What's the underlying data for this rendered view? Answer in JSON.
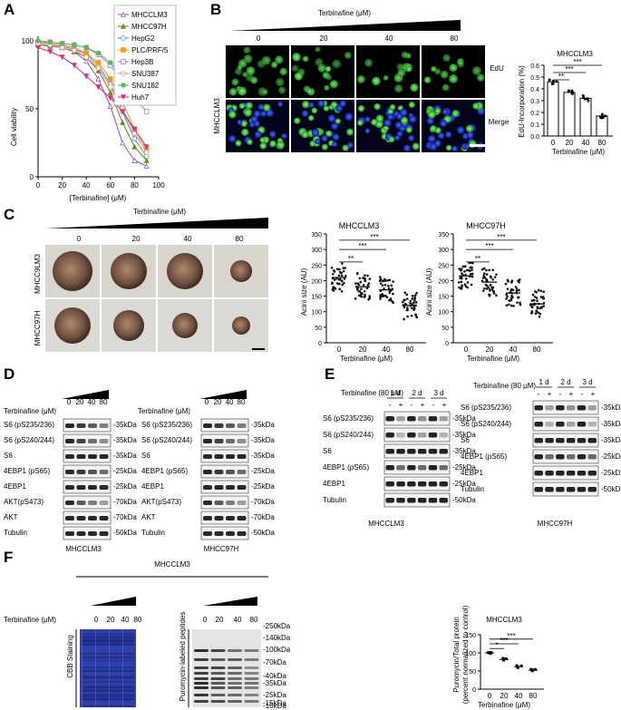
{
  "panels": {
    "A": "A",
    "B": "B",
    "C": "C",
    "D": "D",
    "E": "E",
    "F": "F"
  },
  "panel_a": {
    "ylabel": "Cell viability",
    "xlabel": "[Terbinafine] (μM)",
    "legend": [
      {
        "name": "MHCCLM3",
        "color": "#9b59b6",
        "marker": "triangle-open"
      },
      {
        "name": "MHCC97H",
        "color": "#6b8e23",
        "marker": "triangle"
      },
      {
        "name": "HepG2",
        "color": "#4a90d9",
        "marker": "circle-open"
      },
      {
        "name": "PLC/PRF/5",
        "color": "#f39c12",
        "marker": "square"
      },
      {
        "name": "Hep3B",
        "color": "#c774c7",
        "marker": "square-open"
      },
      {
        "name": "SNU387",
        "color": "#e88a8a",
        "marker": "circle-open"
      },
      {
        "name": "SNU182",
        "color": "#5cb85c",
        "marker": "circle"
      },
      {
        "name": "Huh7",
        "color": "#d63384",
        "marker": "triangle-down"
      }
    ]
  },
  "panel_b": {
    "treatment_label": "Terbinafine (μM)",
    "doses": [
      "0",
      "20",
      "40",
      "80"
    ],
    "row_group_label": "MHCCLM3",
    "rows": [
      "EdU",
      "Merge"
    ],
    "chart_title": "MHCCLM3",
    "ylabel": "EdU-Incorporation (%)",
    "xlabel": "Terbinafine (μM)",
    "sig": [
      "**",
      "***",
      "***"
    ]
  },
  "panel_c": {
    "treatment_label": "Terbinafine (μM)",
    "doses": [
      "0",
      "20",
      "40",
      "80"
    ],
    "rows": [
      "MHCC9LM3",
      "MHCC97H"
    ],
    "charts": [
      {
        "title": "MHCCLM3",
        "ylabel": "Acini size (AU)",
        "xlabel": "Terbinafine (μM)",
        "sig": [
          "**",
          "***",
          "***"
        ]
      },
      {
        "title": "MHCC97H",
        "ylabel": "Acini size (AU)",
        "xlabel": "Terbinafine (μM)",
        "sig": [
          "**",
          "***",
          "***"
        ]
      }
    ]
  },
  "panel_d": {
    "treatment_label": "Terbinafine (μM)",
    "doses": [
      "0",
      "20",
      "40",
      "80"
    ],
    "blot_labels": [
      "S6 (pS235/236)",
      "S6 (pS240/244)",
      "S6",
      "4EBP1 (pS65)",
      "4EBP1",
      "AKT(pS473)",
      "AKT",
      "Tubulin"
    ],
    "markers_left": [
      "35kDa",
      "35kDa",
      "35kDa",
      "25kDa",
      "25kDa",
      "70kDa",
      "70kDa",
      "50kDa"
    ],
    "markers_right": [
      "35kDa",
      "35kDa",
      "35kDa",
      "25kDa",
      "25kDa",
      "70kDa",
      "70kDa",
      "50kDa"
    ],
    "cell_lines": [
      "MHCCLM3",
      "MHCC97H"
    ]
  },
  "panel_e": {
    "treatment_label": "Terbinafine (80 μM)",
    "times": [
      "1 d",
      "2 d",
      "3 d"
    ],
    "signs": [
      "-",
      "+",
      "-",
      "+",
      "-",
      "+"
    ],
    "blot_labels": [
      "S6 (pS235/236)",
      "S6 (pS240/244)",
      "S6",
      "4EBP1 (pS65)",
      "4EBP1",
      "Tubulin"
    ],
    "markers": [
      "35kDa",
      "35kDa",
      "35kDa",
      "25kDa",
      "25kDa",
      "50kDa"
    ],
    "cell_lines": [
      "MHCCLM3",
      "MHCC97H"
    ]
  },
  "panel_f": {
    "cell_line": "MHCCLM3",
    "treatment_label": "Terbinafine (μM)",
    "doses": [
      "0",
      "20",
      "40",
      "80"
    ],
    "cbb_label": "CBB Staining",
    "puro_label": "Puromycin-labeled peptides",
    "ladder": [
      "250kDa",
      "140kDa",
      "100kDa",
      "70kDa",
      "40kDa",
      "35kDa",
      "25kDa",
      "15kDa",
      "10kDa"
    ],
    "chart_title": "MHCCLM3",
    "ylabel_1": "Puromycin/Total protein",
    "ylabel_2": "(percent normalized to control)",
    "xlabel": "Terbinafine (μM)",
    "sig": [
      "*",
      "***",
      "***"
    ]
  },
  "chart_data": [
    {
      "type": "line",
      "panel": "A",
      "xlabel": "[Terbinafine] (μM)",
      "ylabel": "Cell viability",
      "xlim": [
        0,
        100
      ],
      "ylim": [
        0,
        100
      ],
      "xticks": [
        0,
        20,
        40,
        60,
        80,
        100
      ],
      "yticks": [
        0,
        50,
        100
      ],
      "x": [
        0,
        10,
        20,
        30,
        40,
        50,
        60,
        70,
        80,
        90
      ],
      "series": [
        {
          "name": "MHCCLM3",
          "values": [
            98,
            97,
            95,
            92,
            85,
            72,
            52,
            25,
            12,
            8
          ]
        },
        {
          "name": "MHCC97H",
          "values": [
            97,
            96,
            95,
            92,
            88,
            78,
            62,
            40,
            22,
            12
          ]
        },
        {
          "name": "HepG2",
          "values": [
            98,
            97,
            96,
            94,
            90,
            82,
            68,
            48,
            28,
            15
          ]
        },
        {
          "name": "PLC/PRF/5",
          "values": [
            99,
            98,
            97,
            95,
            91,
            84,
            72,
            55,
            35,
            20
          ]
        },
        {
          "name": "Hep3B",
          "values": [
            99,
            99,
            98,
            97,
            95,
            90,
            82,
            70,
            58,
            48
          ]
        },
        {
          "name": "SNU387",
          "values": [
            98,
            97,
            95,
            93,
            88,
            80,
            66,
            50,
            32,
            18
          ]
        },
        {
          "name": "SNU182",
          "values": [
            100,
            99,
            98,
            97,
            95,
            91,
            84,
            74,
            65,
            57
          ]
        },
        {
          "name": "Huh7",
          "values": [
            95,
            92,
            88,
            82,
            74,
            66,
            58,
            48,
            35,
            22
          ]
        }
      ]
    },
    {
      "type": "bar",
      "panel": "B",
      "title": "MHCCLM3",
      "ylabel": "EdU-Incorporation (%)",
      "xlabel": "Terbinafine (μM)",
      "categories": [
        "0",
        "20",
        "40",
        "80"
      ],
      "values": [
        0.46,
        0.37,
        0.32,
        0.17
      ],
      "ylim": [
        0,
        0.6
      ],
      "yticks": [
        0,
        0.1,
        0.2,
        0.3,
        0.4,
        0.5,
        0.6
      ]
    },
    {
      "type": "scatter",
      "panel": "C",
      "title": "MHCCLM3",
      "ylabel": "Acini size (AU)",
      "xlabel": "Terbinafine (μM)",
      "categories": [
        "0",
        "20",
        "40",
        "80"
      ],
      "means": [
        210,
        180,
        170,
        120
      ],
      "ylim": [
        0,
        350
      ],
      "yticks": [
        0,
        50,
        100,
        150,
        200,
        250,
        300,
        350
      ]
    },
    {
      "type": "scatter",
      "panel": "C",
      "title": "MHCC97H",
      "ylabel": "Acini size (AU)",
      "xlabel": "Terbinafine (μM)",
      "categories": [
        "0",
        "20",
        "40",
        "80"
      ],
      "means": [
        215,
        195,
        160,
        125
      ],
      "ylim": [
        0,
        350
      ],
      "yticks": [
        0,
        50,
        100,
        150,
        200,
        250,
        300,
        350
      ]
    },
    {
      "type": "scatter",
      "panel": "F",
      "title": "MHCCLM3",
      "ylabel": "Puromycin/Total protein",
      "xlabel": "Terbinafine (μM)",
      "categories": [
        "0",
        "20",
        "40",
        "80"
      ],
      "means": [
        100,
        82,
        62,
        52
      ],
      "ylim": [
        0,
        150
      ],
      "yticks": [
        0,
        50,
        100,
        150
      ]
    }
  ]
}
